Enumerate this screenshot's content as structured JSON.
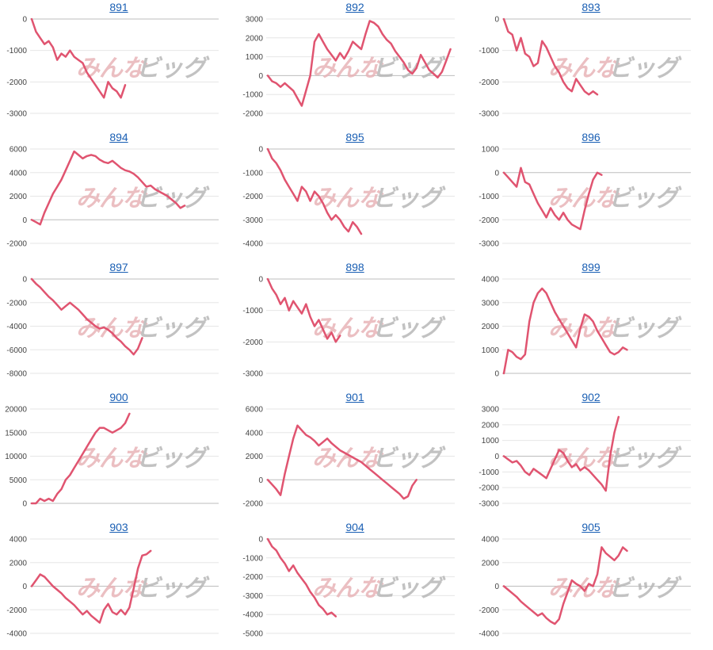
{
  "watermark": {
    "left_text": "みんな",
    "right_text": "ビッグ",
    "left_color": "#e8b4b8",
    "right_color": "#b8b8b8"
  },
  "colors": {
    "line": "#e05470",
    "grid": "#e6e6e6",
    "zero_line": "#bdbdbd",
    "title": "#1a5fb4",
    "tick_text": "#444444"
  },
  "chart_data": [
    {
      "type": "line",
      "title": "891",
      "yticks": [
        0,
        -1000,
        -2000,
        -3000
      ],
      "ylim": [
        -3000,
        0
      ],
      "grid": true,
      "values": [
        0,
        -400,
        -600,
        -800,
        -700,
        -900,
        -1300,
        -1100,
        -1200,
        -1000,
        -1200,
        -1300,
        -1400,
        -1700,
        -1900,
        -2100,
        -2300,
        -2500,
        -2000,
        -2200,
        -2300,
        -2500,
        -2100
      ]
    },
    {
      "type": "line",
      "title": "892",
      "yticks": [
        3000,
        2000,
        1000,
        0,
        -1000,
        -2000
      ],
      "ylim": [
        -2000,
        3000
      ],
      "grid": true,
      "values": [
        0,
        -300,
        -400,
        -600,
        -400,
        -600,
        -800,
        -1200,
        -1600,
        -800,
        0,
        1800,
        2200,
        1800,
        1400,
        1100,
        800,
        1200,
        900,
        1300,
        1800,
        1600,
        1400,
        2200,
        2900,
        2800,
        2600,
        2200,
        1900,
        1700,
        1300,
        1000,
        700,
        300,
        100,
        400,
        1100,
        700,
        300,
        100,
        -100,
        200,
        800,
        1400
      ]
    },
    {
      "type": "line",
      "title": "893",
      "yticks": [
        0,
        -1000,
        -2000,
        -3000
      ],
      "ylim": [
        -3000,
        0
      ],
      "grid": true,
      "values": [
        0,
        -400,
        -500,
        -1000,
        -600,
        -1100,
        -1200,
        -1500,
        -1400,
        -700,
        -900,
        -1200,
        -1500,
        -1700,
        -2000,
        -2200,
        -2300,
        -1900,
        -2100,
        -2300,
        -2400,
        -2300,
        -2400
      ]
    },
    {
      "type": "line",
      "title": "894",
      "yticks": [
        6000,
        4000,
        2000,
        0,
        -2000
      ],
      "ylim": [
        -2000,
        6000
      ],
      "grid": true,
      "values": [
        0,
        -200,
        -400,
        600,
        1400,
        2200,
        2800,
        3400,
        4200,
        5000,
        5800,
        5500,
        5200,
        5400,
        5500,
        5400,
        5100,
        4900,
        4800,
        5000,
        4700,
        4400,
        4200,
        4100,
        3900,
        3600,
        3200,
        2800,
        2900,
        2600,
        2400,
        2200,
        2000,
        1700,
        1400,
        1000,
        1200
      ]
    },
    {
      "type": "line",
      "title": "895",
      "yticks": [
        0,
        -1000,
        -2000,
        -3000,
        -4000
      ],
      "ylim": [
        -4000,
        0
      ],
      "grid": true,
      "values": [
        0,
        -400,
        -600,
        -900,
        -1300,
        -1600,
        -1900,
        -2200,
        -1600,
        -1800,
        -2200,
        -1800,
        -2000,
        -2300,
        -2700,
        -3000,
        -2800,
        -3000,
        -3300,
        -3500,
        -3100,
        -3300,
        -3600
      ]
    },
    {
      "type": "line",
      "title": "896",
      "yticks": [
        1000,
        0,
        -1000,
        -2000,
        -3000
      ],
      "ylim": [
        -3000,
        1000
      ],
      "grid": true,
      "values": [
        0,
        -200,
        -400,
        -600,
        200,
        -400,
        -500,
        -900,
        -1300,
        -1600,
        -1900,
        -1500,
        -1800,
        -2000,
        -1700,
        -2000,
        -2200,
        -2300,
        -2400,
        -1600,
        -900,
        -300,
        0,
        -100
      ]
    },
    {
      "type": "line",
      "title": "897",
      "yticks": [
        0,
        -2000,
        -4000,
        -6000,
        -8000
      ],
      "ylim": [
        -8000,
        0
      ],
      "grid": true,
      "values": [
        0,
        -400,
        -700,
        -1100,
        -1500,
        -1800,
        -2200,
        -2600,
        -2300,
        -2000,
        -2300,
        -2600,
        -3000,
        -3400,
        -3700,
        -4000,
        -4200,
        -4100,
        -4300,
        -4600,
        -5000,
        -5300,
        -5700,
        -6000,
        -6400,
        -5900,
        -5000
      ]
    },
    {
      "type": "line",
      "title": "898",
      "yticks": [
        0,
        -1000,
        -2000,
        -3000
      ],
      "ylim": [
        -3000,
        0
      ],
      "grid": true,
      "values": [
        0,
        -300,
        -500,
        -800,
        -600,
        -1000,
        -700,
        -900,
        -1100,
        -800,
        -1200,
        -1500,
        -1300,
        -1600,
        -1900,
        -1700,
        -2000,
        -1800
      ]
    },
    {
      "type": "line",
      "title": "899",
      "yticks": [
        4000,
        3000,
        2000,
        1000,
        0
      ],
      "ylim": [
        0,
        4000
      ],
      "grid": true,
      "values": [
        0,
        1000,
        900,
        700,
        600,
        800,
        2200,
        3000,
        3400,
        3600,
        3400,
        3000,
        2600,
        2300,
        2000,
        1700,
        1400,
        1100,
        1900,
        2500,
        2400,
        2200,
        1800,
        1500,
        1200,
        900,
        800,
        900,
        1100,
        1000
      ]
    },
    {
      "type": "line",
      "title": "900",
      "yticks": [
        20000,
        15000,
        10000,
        5000,
        0
      ],
      "ylim": [
        0,
        20000
      ],
      "grid": true,
      "values": [
        0,
        0,
        1000,
        500,
        1000,
        500,
        2000,
        3000,
        5000,
        6000,
        7500,
        9000,
        10500,
        12000,
        13500,
        15000,
        16000,
        16000,
        15500,
        15000,
        15500,
        16000,
        17000,
        19000
      ]
    },
    {
      "type": "line",
      "title": "901",
      "yticks": [
        6000,
        4000,
        2000,
        0,
        -2000
      ],
      "ylim": [
        -2000,
        6000
      ],
      "grid": true,
      "values": [
        0,
        -400,
        -800,
        -1300,
        500,
        2000,
        3500,
        4600,
        4200,
        3800,
        3600,
        3300,
        2900,
        3200,
        3500,
        3100,
        2800,
        2500,
        2300,
        2100,
        1900,
        1700,
        1500,
        1200,
        900,
        600,
        300,
        0,
        -300,
        -600,
        -900,
        -1200,
        -1600,
        -1400,
        -500,
        0
      ]
    },
    {
      "type": "line",
      "title": "902",
      "yticks": [
        3000,
        2000,
        1000,
        0,
        -1000,
        -2000,
        -3000
      ],
      "ylim": [
        -3000,
        3000
      ],
      "grid": true,
      "values": [
        0,
        -200,
        -400,
        -300,
        -600,
        -1000,
        -1200,
        -800,
        -1000,
        -1200,
        -1400,
        -800,
        -200,
        400,
        200,
        -300,
        -700,
        -500,
        -900,
        -700,
        -900,
        -1200,
        -1500,
        -1800,
        -2200,
        0,
        1500,
        2500
      ]
    },
    {
      "type": "line",
      "title": "903",
      "yticks": [
        4000,
        2000,
        0,
        -2000,
        -4000
      ],
      "ylim": [
        -4000,
        4000
      ],
      "grid": true,
      "values": [
        0,
        500,
        1000,
        800,
        400,
        0,
        -300,
        -600,
        -1000,
        -1300,
        -1600,
        -2000,
        -2400,
        -2100,
        -2500,
        -2800,
        -3100,
        -2000,
        -1500,
        -2200,
        -2400,
        -2000,
        -2400,
        -1800,
        -200,
        1500,
        2600,
        2700,
        3000
      ]
    },
    {
      "type": "line",
      "title": "904",
      "yticks": [
        0,
        -1000,
        -2000,
        -3000,
        -4000,
        -5000
      ],
      "ylim": [
        -5000,
        0
      ],
      "grid": true,
      "values": [
        0,
        -400,
        -600,
        -1000,
        -1300,
        -1700,
        -1400,
        -1800,
        -2100,
        -2400,
        -2800,
        -3100,
        -3500,
        -3700,
        -4000,
        -3900,
        -4100
      ]
    },
    {
      "type": "line",
      "title": "905",
      "yticks": [
        4000,
        2000,
        0,
        -2000,
        -4000
      ],
      "ylim": [
        -4000,
        4000
      ],
      "grid": true,
      "values": [
        0,
        -300,
        -600,
        -900,
        -1300,
        -1600,
        -1900,
        -2200,
        -2500,
        -2300,
        -2700,
        -3000,
        -3200,
        -2800,
        -1500,
        -500,
        500,
        200,
        0,
        -400,
        200,
        0,
        1000,
        3300,
        2800,
        2500,
        2200,
        2600,
        3300,
        3000
      ]
    }
  ]
}
